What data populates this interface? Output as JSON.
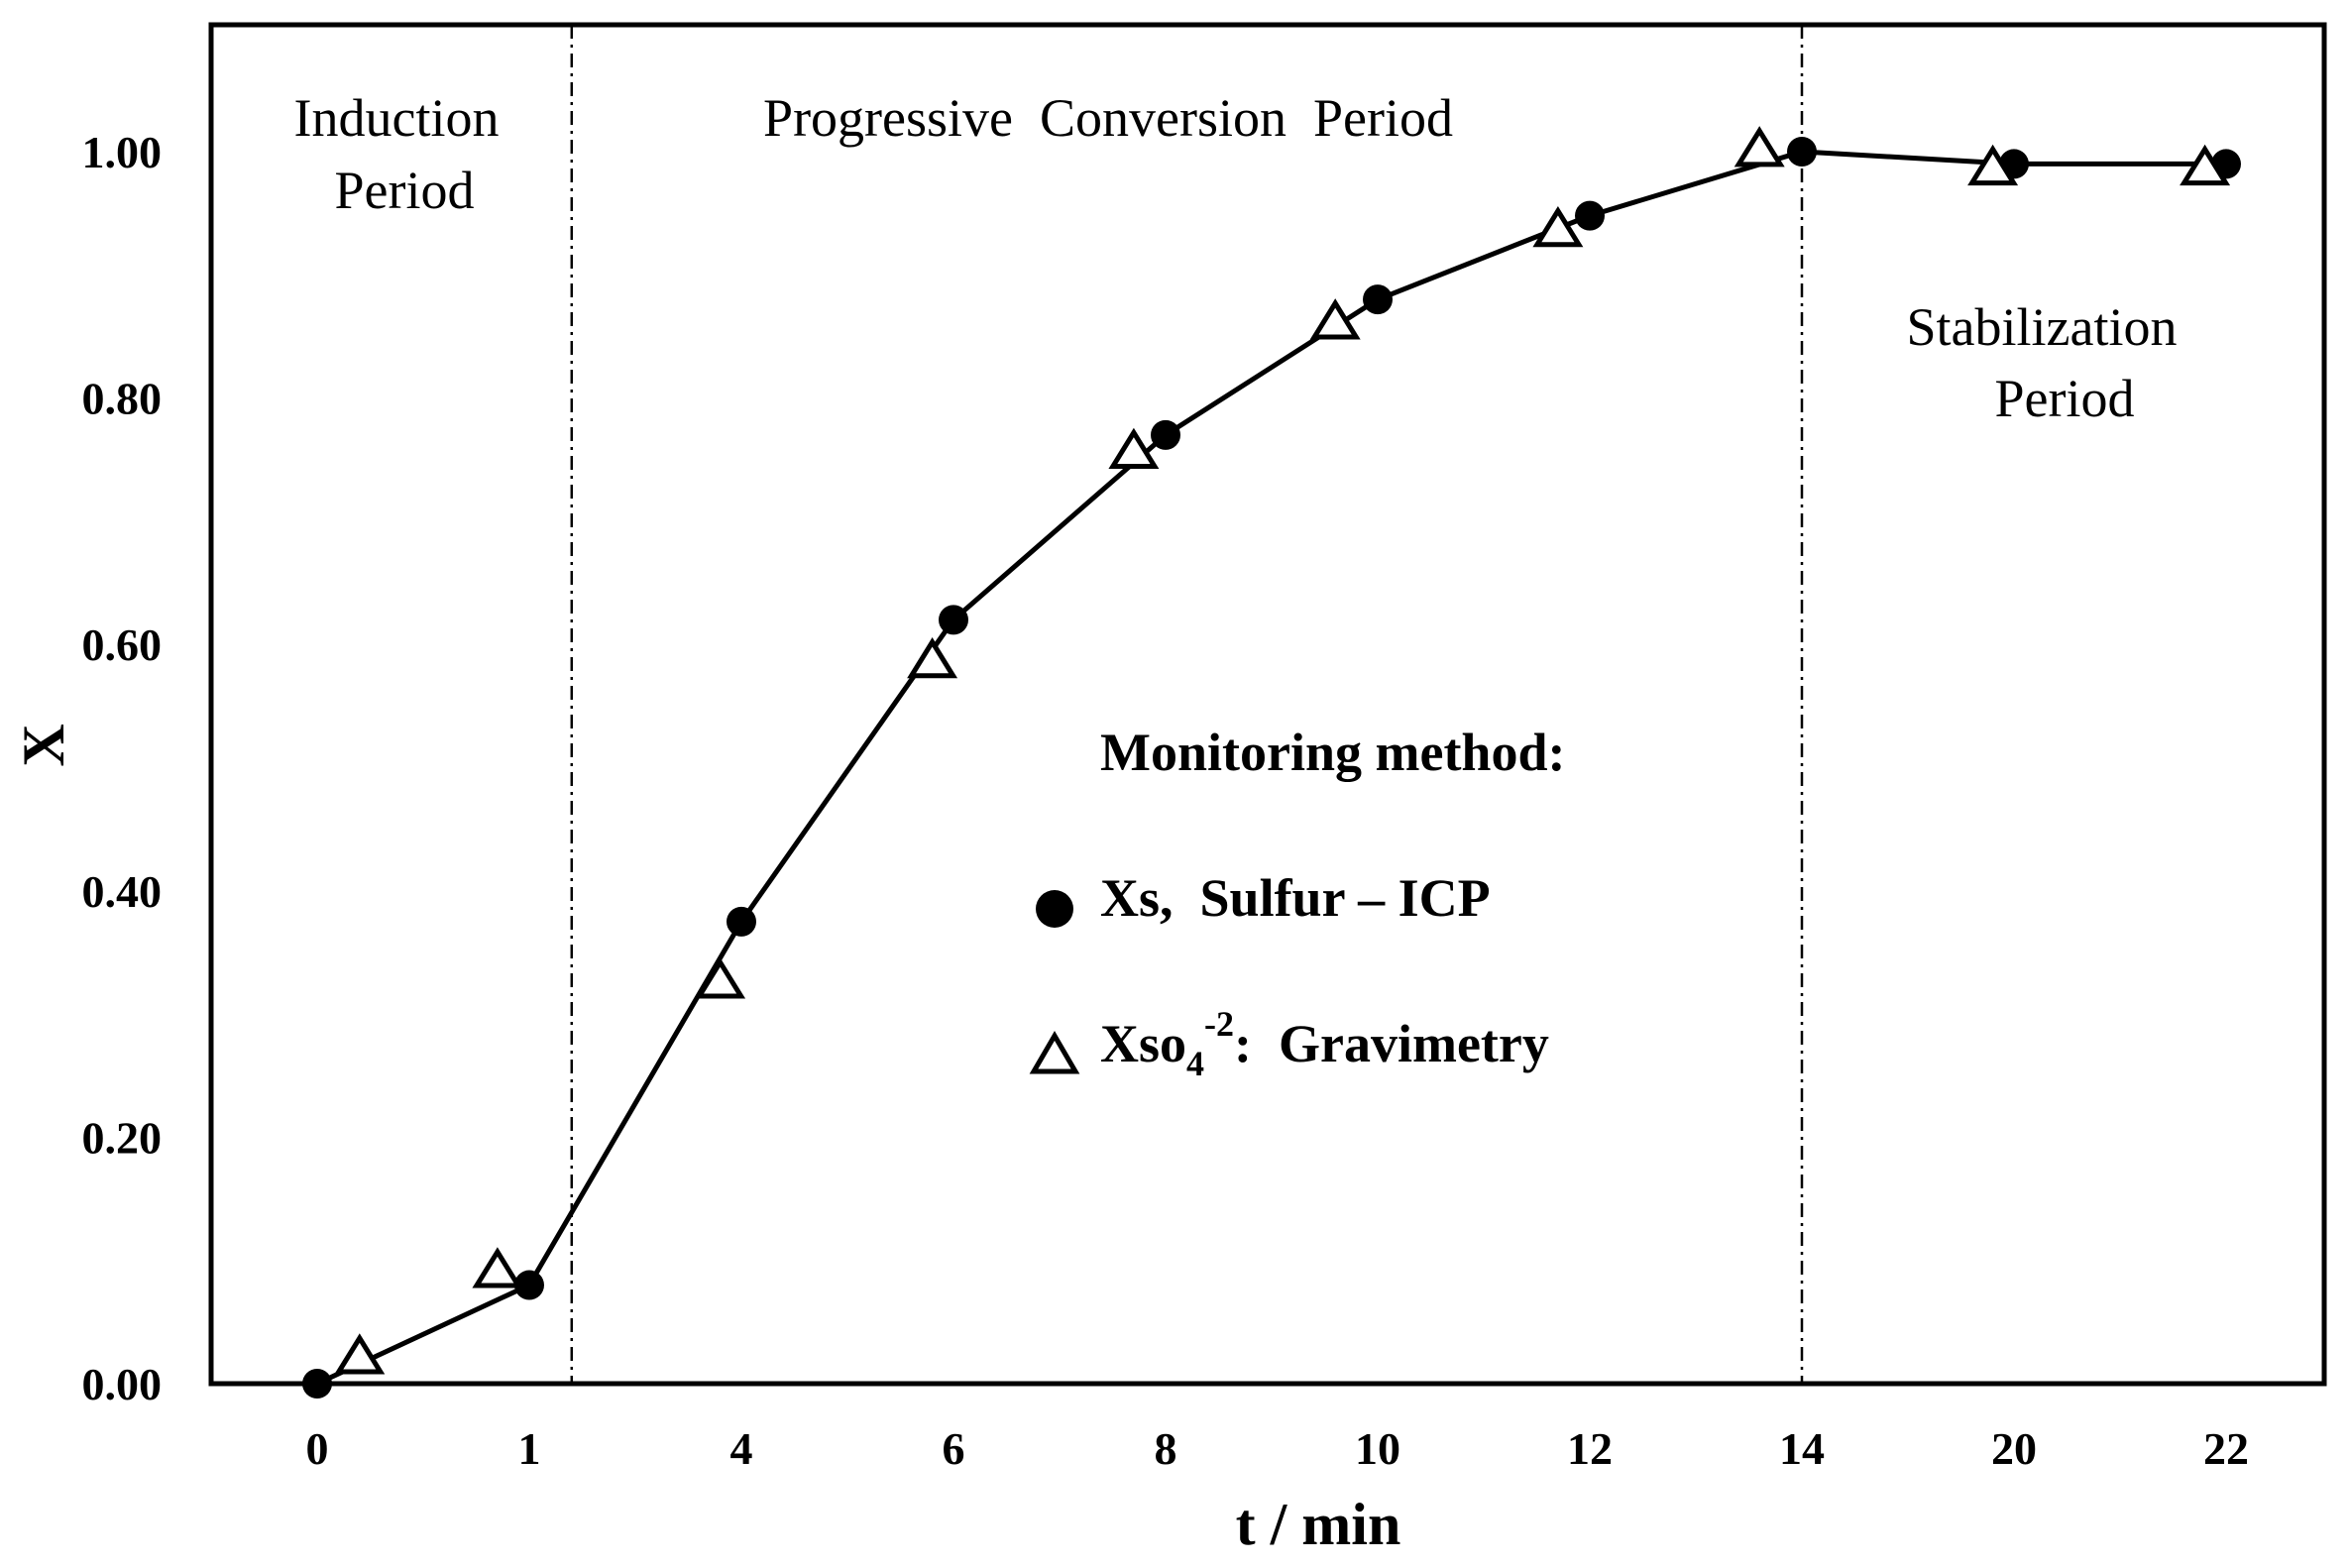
{
  "chart_data": {
    "type": "line",
    "xlabel": "t / min",
    "ylabel": "X",
    "x_ticks": [
      "0",
      "1",
      "4",
      "6",
      "8",
      "10",
      "12",
      "14",
      "20",
      "22"
    ],
    "y_ticks": [
      "0.00",
      "0.20",
      "0.40",
      "0.60",
      "0.80",
      "1.00"
    ],
    "ylim": [
      0,
      1.1
    ],
    "grid": false,
    "series": [
      {
        "name": "Xs, Sulfur – ICP",
        "marker": "filled-circle",
        "line": true,
        "x_index": [
          0,
          1,
          2,
          3,
          4,
          5,
          6,
          7,
          8,
          9
        ],
        "values": [
          0.0,
          0.08,
          0.375,
          0.62,
          0.77,
          0.88,
          0.948,
          1.0,
          0.99,
          0.99
        ]
      },
      {
        "name": "Xso4-2: Gravimetry",
        "marker": "open-triangle",
        "line": false,
        "x_index": [
          0.2,
          0.85,
          1.9,
          2.9,
          3.85,
          4.8,
          5.85,
          6.8,
          7.9,
          8.9
        ],
        "values": [
          0.02,
          0.09,
          0.325,
          0.585,
          0.755,
          0.86,
          0.935,
          1.0,
          0.985,
          0.985
        ]
      }
    ],
    "period_dividers_x_index": [
      1.2,
      7.0
    ],
    "annotations": {
      "induction": [
        "Induction",
        "Period"
      ],
      "progressive": "Progressive  Conversion  Period",
      "stabilization": [
        "Stabilization",
        "Period"
      ]
    },
    "legend": {
      "title": "Monitoring method:",
      "position": "center-right",
      "items": [
        {
          "marker": "filled-circle",
          "label": "Xs,  Sulfur – ICP"
        },
        {
          "marker": "open-triangle",
          "label_main": "Xso",
          "label_sub": "4",
          "label_sup": "-2",
          "label_tail": ":  Gravimetry"
        }
      ]
    }
  },
  "colors": {
    "ink": "#000000",
    "background": "#ffffff"
  }
}
